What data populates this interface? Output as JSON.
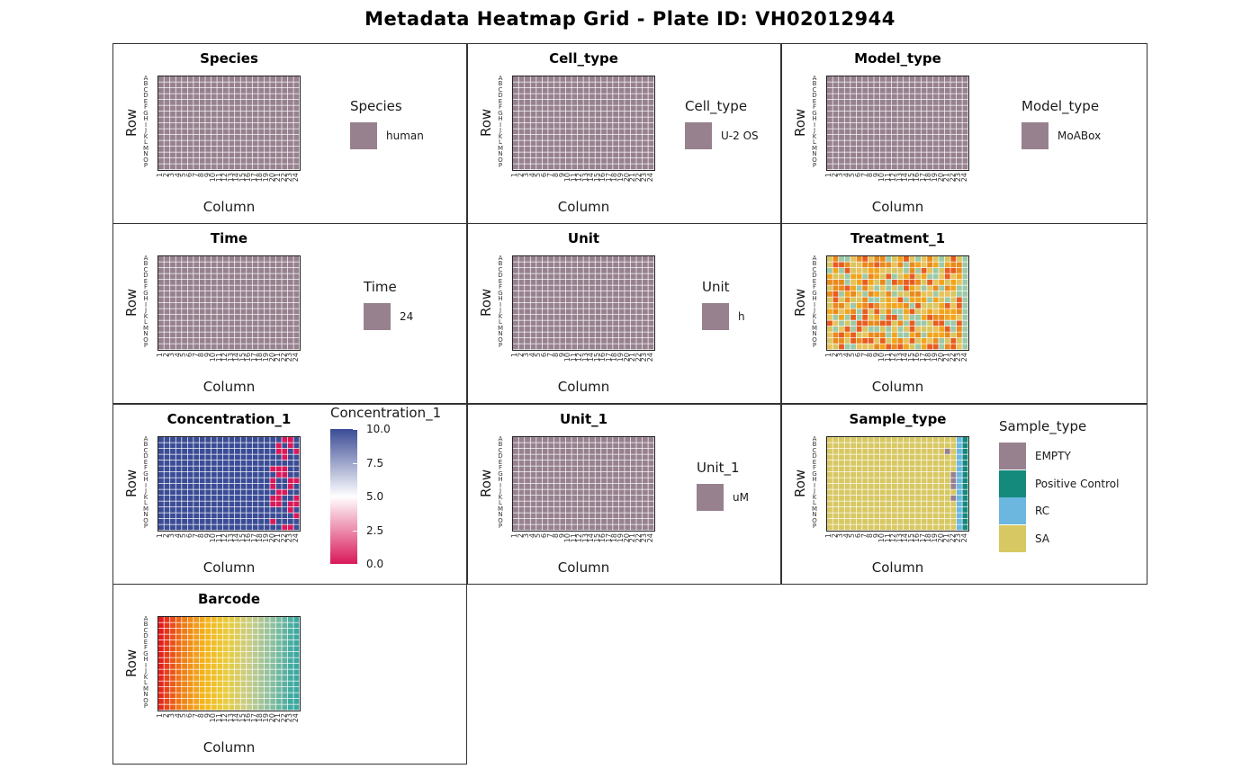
{
  "title": "Metadata Heatmap Grid - Plate ID: VH02012944",
  "axis": {
    "x_label": "Column",
    "y_label": "Row",
    "rows": [
      "A",
      "B",
      "C",
      "D",
      "E",
      "F",
      "G",
      "H",
      "I",
      "J",
      "K",
      "L",
      "M",
      "N",
      "O",
      "P"
    ],
    "columns": [
      "1",
      "2",
      "3",
      "4",
      "5",
      "6",
      "7",
      "8",
      "9",
      "10",
      "11",
      "12",
      "13",
      "14",
      "15",
      "16",
      "17",
      "18",
      "19",
      "20",
      "21",
      "22",
      "23",
      "24"
    ]
  },
  "colors": {
    "mauve": "#97818f",
    "grid": "#ffffff",
    "treatment_palette": [
      "#e8c25a",
      "#f2a51c",
      "#e85c20",
      "#9cc9a8",
      "#d8c560",
      "#ea8a1c"
    ],
    "concentration_high": "#3b4c96",
    "concentration_mid": "#ffffff",
    "concentration_low": "#d9185a",
    "sample_empty": "#97818f",
    "sample_positive_control": "#138a7c",
    "sample_rc": "#6cb7df",
    "sample_sa": "#d8c863",
    "barcode_gradient": [
      "#e31a1c",
      "#f07814",
      "#f4b41c",
      "#e8cc3c",
      "#c8cc88",
      "#8cc0a0",
      "#3aa8a0"
    ]
  },
  "panels": [
    {
      "id": "species",
      "title": "Species",
      "legend_title": "Species",
      "legend_items": [
        {
          "label": "human",
          "color": "#97818f"
        }
      ]
    },
    {
      "id": "cell_type",
      "title": "Cell_type",
      "legend_title": "Cell_type",
      "legend_items": [
        {
          "label": "U-2 OS",
          "color": "#97818f"
        }
      ]
    },
    {
      "id": "model_type",
      "title": "Model_type",
      "legend_title": "Model_type",
      "legend_items": [
        {
          "label": "MoABox",
          "color": "#97818f"
        }
      ]
    },
    {
      "id": "time",
      "title": "Time",
      "legend_title": "Time",
      "legend_items": [
        {
          "label": "24",
          "color": "#97818f"
        }
      ]
    },
    {
      "id": "unit",
      "title": "Unit",
      "legend_title": "Unit",
      "legend_items": [
        {
          "label": "h",
          "color": "#97818f"
        }
      ]
    },
    {
      "id": "treatment_1",
      "title": "Treatment_1",
      "legend_title": "",
      "legend_items": []
    },
    {
      "id": "concentration_1",
      "title": "Concentration_1",
      "legend_title": "Concentration_1",
      "colorbar_ticks": [
        "10.0",
        "7.5",
        "5.0",
        "2.5",
        "0.0"
      ]
    },
    {
      "id": "unit_1",
      "title": "Unit_1",
      "legend_title": "Unit_1",
      "legend_items": [
        {
          "label": "uM",
          "color": "#97818f"
        }
      ]
    },
    {
      "id": "sample_type",
      "title": "Sample_type",
      "legend_title": "Sample_type",
      "legend_items": [
        {
          "label": "EMPTY",
          "color": "#97818f"
        },
        {
          "label": "Positive Control",
          "color": "#138a7c"
        },
        {
          "label": "RC",
          "color": "#6cb7df"
        },
        {
          "label": "SA",
          "color": "#d8c863"
        }
      ]
    },
    {
      "id": "barcode",
      "title": "Barcode",
      "legend_title": "",
      "legend_items": []
    }
  ],
  "chart_data": [
    {
      "type": "heatmap",
      "title": "Species",
      "xlabel": "Column",
      "ylabel": "Row",
      "rows": 16,
      "columns": 24,
      "values": "human (all wells)"
    },
    {
      "type": "heatmap",
      "title": "Cell_type",
      "xlabel": "Column",
      "ylabel": "Row",
      "rows": 16,
      "columns": 24,
      "values": "U-2 OS (all wells)"
    },
    {
      "type": "heatmap",
      "title": "Model_type",
      "xlabel": "Column",
      "ylabel": "Row",
      "rows": 16,
      "columns": 24,
      "values": "MoABox (all wells)"
    },
    {
      "type": "heatmap",
      "title": "Time",
      "xlabel": "Column",
      "ylabel": "Row",
      "rows": 16,
      "columns": 24,
      "values": "24 (all wells)"
    },
    {
      "type": "heatmap",
      "title": "Unit",
      "xlabel": "Column",
      "ylabel": "Row",
      "rows": 16,
      "columns": 24,
      "values": "h (all wells)"
    },
    {
      "type": "heatmap",
      "title": "Treatment_1",
      "xlabel": "Column",
      "ylabel": "Row",
      "rows": 16,
      "columns": 24,
      "values": "many distinct treatments, scattered colors (legend not shown)"
    },
    {
      "type": "heatmap",
      "title": "Concentration_1",
      "xlabel": "Column",
      "ylabel": "Row",
      "rows": 16,
      "columns": 24,
      "color_range": [
        0.0,
        10.0
      ],
      "values": "10.0 in columns 1-19; 0.0 in scattered wells of columns 20-24"
    },
    {
      "type": "heatmap",
      "title": "Unit_1",
      "xlabel": "Column",
      "ylabel": "Row",
      "rows": 16,
      "columns": 24,
      "values": "uM (all wells)"
    },
    {
      "type": "heatmap",
      "title": "Sample_type",
      "xlabel": "Column",
      "ylabel": "Row",
      "rows": 16,
      "columns": 24,
      "categories": [
        "EMPTY",
        "Positive Control",
        "RC",
        "SA"
      ],
      "values": "SA in columns 1-20; EMPTY in scattered wells of columns 21-22; RC in column 23; Positive Control in column 24"
    },
    {
      "type": "heatmap",
      "title": "Barcode",
      "xlabel": "Column",
      "ylabel": "Row",
      "rows": 16,
      "columns": 24,
      "values": "unique per well, gradient red to teal left to right"
    }
  ]
}
